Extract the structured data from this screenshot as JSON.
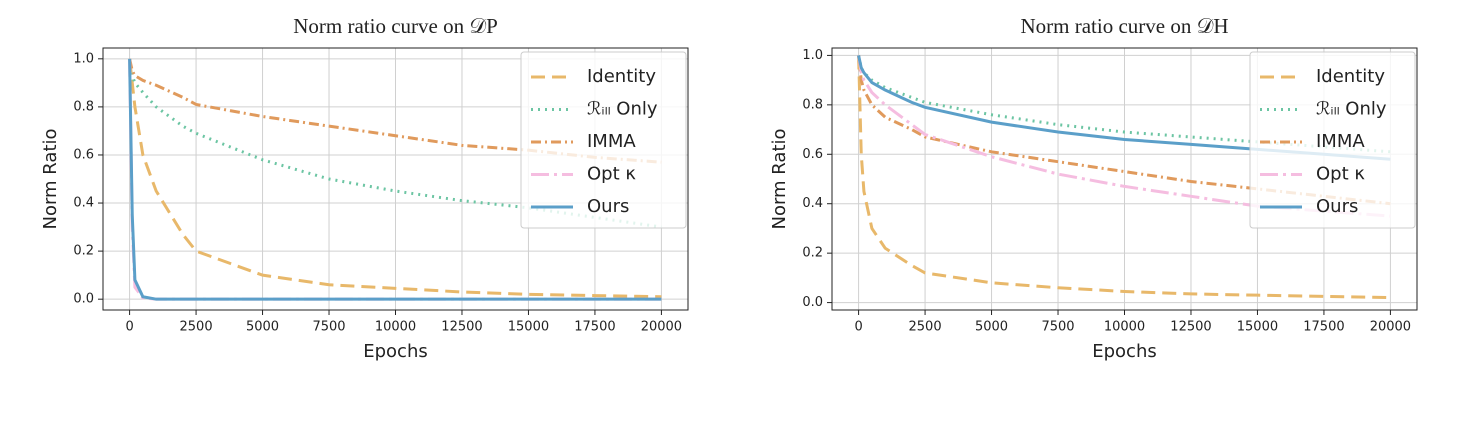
{
  "chart_data": [
    {
      "type": "line",
      "title": "Norm ratio curve on 𝒟P",
      "xlabel": "Epochs",
      "ylabel": "Norm Ratio",
      "x": [
        0,
        100,
        200,
        500,
        1000,
        2000,
        2500,
        5000,
        7500,
        10000,
        12500,
        15000,
        17500,
        20000
      ],
      "series": [
        {
          "name": "Identity",
          "color": "#e8b86a",
          "dash": "dashed",
          "values": [
            1.0,
            0.9,
            0.8,
            0.6,
            0.45,
            0.27,
            0.2,
            0.1,
            0.06,
            0.045,
            0.03,
            0.02,
            0.015,
            0.01
          ]
        },
        {
          "name": "ℛᵢₗₗ Only",
          "color": "#6cc5a3",
          "dash": "dotted",
          "values": [
            1.0,
            0.93,
            0.9,
            0.86,
            0.8,
            0.72,
            0.69,
            0.58,
            0.5,
            0.45,
            0.41,
            0.38,
            0.34,
            0.3
          ]
        },
        {
          "name": "IMMA",
          "color": "#e09a5c",
          "dash": "dashdot",
          "values": [
            1.0,
            0.95,
            0.93,
            0.91,
            0.89,
            0.84,
            0.81,
            0.76,
            0.72,
            0.68,
            0.64,
            0.62,
            0.59,
            0.57
          ]
        },
        {
          "name": "Opt κ",
          "color": "#f5bde0",
          "dash": "longdashdot",
          "values": [
            1.0,
            0.3,
            0.05,
            0.005,
            0,
            0,
            0,
            0,
            0,
            0,
            0,
            0,
            0,
            0
          ]
        },
        {
          "name": "Ours",
          "color": "#5b9fc9",
          "dash": "solid",
          "values": [
            1.0,
            0.35,
            0.08,
            0.01,
            0,
            0,
            0,
            0,
            0,
            0,
            0,
            0,
            0,
            0
          ]
        }
      ],
      "xlim": [
        -1000,
        21000
      ],
      "ylim": [
        -0.045,
        1.045
      ],
      "xticks": [
        0,
        2500,
        5000,
        7500,
        10000,
        12500,
        15000,
        17500,
        20000
      ],
      "yticks": [
        {
          "value": 0,
          "label": "0.0"
        },
        {
          "value": 0.2,
          "label": "0.2"
        },
        {
          "value": 0.4,
          "label": "0.4"
        },
        {
          "value": 0.6,
          "label": "0.6"
        },
        {
          "value": 0.8,
          "label": "0.8"
        },
        {
          "value": 1,
          "label": "1.0"
        }
      ],
      "grid": true,
      "legend": "upper right"
    },
    {
      "type": "line",
      "title": "Norm ratio curve on 𝒟H",
      "xlabel": "Epochs",
      "ylabel": "Norm Ratio",
      "x": [
        0,
        100,
        200,
        500,
        1000,
        2000,
        2500,
        5000,
        7500,
        10000,
        12500,
        15000,
        17500,
        20000
      ],
      "series": [
        {
          "name": "Identity",
          "color": "#e8b86a",
          "dash": "dashed",
          "values": [
            1.0,
            0.6,
            0.45,
            0.3,
            0.22,
            0.15,
            0.12,
            0.08,
            0.06,
            0.045,
            0.035,
            0.03,
            0.025,
            0.02
          ]
        },
        {
          "name": "ℛᵢₗₗ Only",
          "color": "#6cc5a3",
          "dash": "dotted",
          "values": [
            1.0,
            0.95,
            0.93,
            0.9,
            0.87,
            0.83,
            0.81,
            0.76,
            0.72,
            0.69,
            0.67,
            0.65,
            0.63,
            0.61
          ]
        },
        {
          "name": "IMMA",
          "color": "#e09a5c",
          "dash": "dashdot",
          "values": [
            1.0,
            0.9,
            0.86,
            0.8,
            0.75,
            0.7,
            0.67,
            0.61,
            0.57,
            0.53,
            0.49,
            0.46,
            0.43,
            0.4
          ]
        },
        {
          "name": "Opt κ",
          "color": "#f5bde0",
          "dash": "longdashdot",
          "values": [
            1.0,
            0.93,
            0.9,
            0.85,
            0.8,
            0.72,
            0.68,
            0.59,
            0.52,
            0.47,
            0.43,
            0.39,
            0.37,
            0.35
          ]
        },
        {
          "name": "Ours",
          "color": "#5b9fc9",
          "dash": "solid",
          "values": [
            1.0,
            0.95,
            0.93,
            0.89,
            0.86,
            0.81,
            0.79,
            0.73,
            0.69,
            0.66,
            0.64,
            0.62,
            0.6,
            0.58
          ]
        }
      ],
      "xlim": [
        -1000,
        21000
      ],
      "ylim": [
        -0.03,
        1.03
      ],
      "xticks": [
        0,
        2500,
        5000,
        7500,
        10000,
        12500,
        15000,
        17500,
        20000
      ],
      "yticks": [
        {
          "value": 0,
          "label": "0.0"
        },
        {
          "value": 0.2,
          "label": "0.2"
        },
        {
          "value": 0.4,
          "label": "0.4"
        },
        {
          "value": 0.6,
          "label": "0.6"
        },
        {
          "value": 0.8,
          "label": "0.8"
        },
        {
          "value": 1,
          "label": "1.0"
        }
      ],
      "grid": true,
      "legend": "upper right"
    }
  ]
}
